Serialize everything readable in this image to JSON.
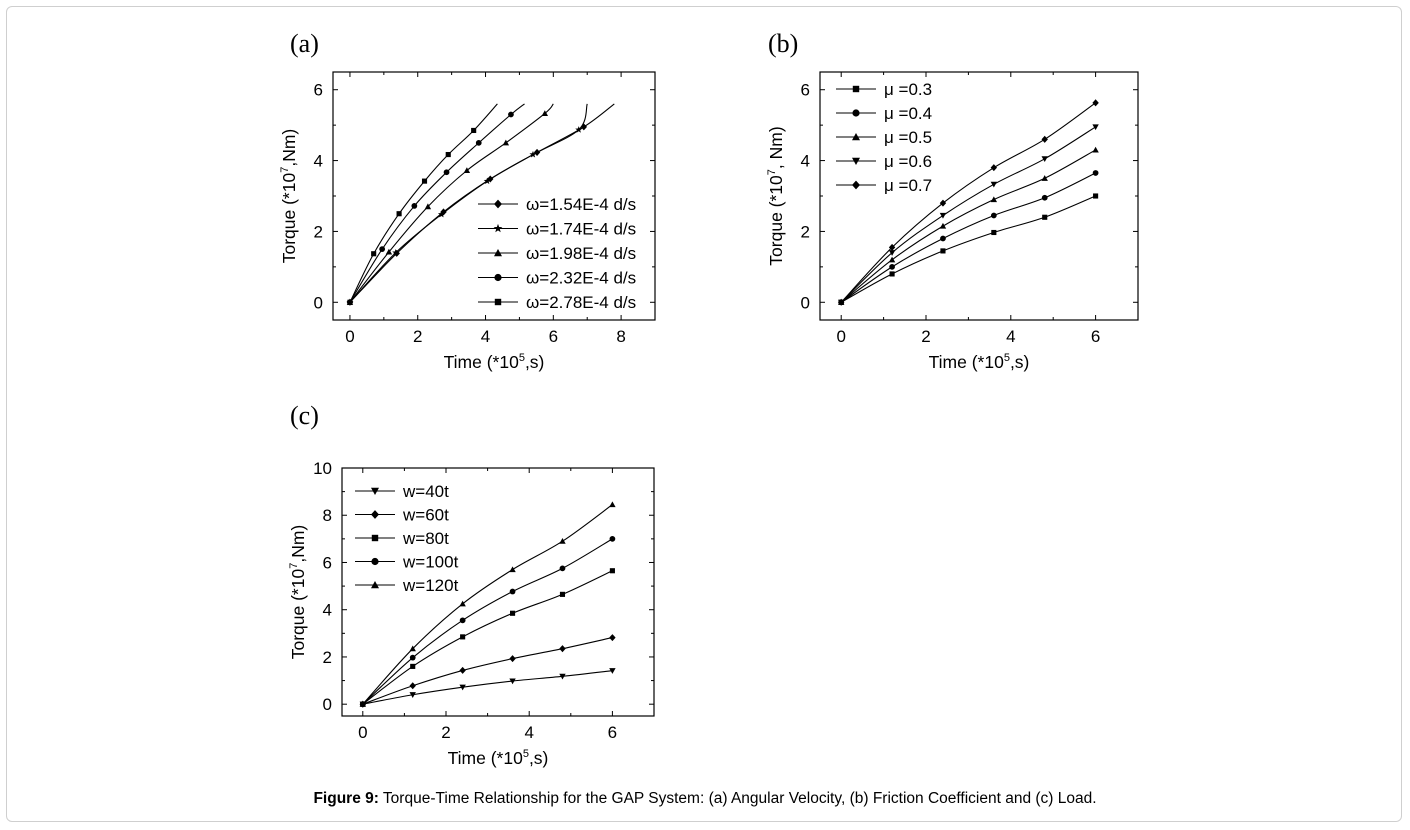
{
  "caption": {
    "label": "Figure 9:",
    "text": " Torque-Time Relationship for the GAP System: (a) Angular Velocity, (b) Friction Coefficient and (c) Load."
  },
  "chart_data": [
    {
      "panel": "(a)",
      "type": "line",
      "xlabel_pre": "Time (*10",
      "xlabel_exp": "5",
      "xlabel_post": ",s)",
      "ylabel_pre": "Torque (*10",
      "ylabel_exp": "7",
      "ylabel_post": ",Nm)",
      "xlim": [
        -0.5,
        9.0
      ],
      "ylim": [
        -0.5,
        6.5
      ],
      "xticks": [
        0,
        2,
        4,
        6,
        8
      ],
      "yticks": [
        0,
        2,
        4,
        6
      ],
      "legend_position": "right",
      "legend_order": [
        4,
        3,
        2,
        1,
        0
      ],
      "series": [
        {
          "name": "ω=2.78E-4 d/s",
          "marker": "square",
          "x": [
            0,
            0.7,
            1.45,
            2.2,
            2.9,
            3.65,
            4.35
          ],
          "y": [
            0,
            1.37,
            2.5,
            3.42,
            4.17,
            4.85,
            5.6
          ],
          "markers": [
            0,
            0.7,
            1.45,
            2.2,
            2.9,
            3.65
          ]
        },
        {
          "name": "ω=2.32E-4 d/s",
          "marker": "circle",
          "x": [
            0,
            0.95,
            1.9,
            2.85,
            3.8,
            4.75,
            5.15
          ],
          "y": [
            0,
            1.5,
            2.72,
            3.67,
            4.5,
            5.3,
            5.6
          ],
          "markers": [
            0,
            0.95,
            1.9,
            2.85,
            3.8,
            4.75
          ]
        },
        {
          "name": "ω=1.98E-4 d/s",
          "marker": "triangle-up",
          "x": [
            0,
            1.15,
            2.3,
            3.45,
            4.6,
            5.75,
            6.0
          ],
          "y": [
            0,
            1.42,
            2.7,
            3.72,
            4.5,
            5.33,
            5.6
          ],
          "markers": [
            0,
            1.15,
            2.3,
            3.45,
            4.6,
            5.75
          ]
        },
        {
          "name": "ω=1.74E-4 d/s",
          "marker": "star",
          "x": [
            0,
            1.35,
            2.7,
            4.05,
            5.4,
            6.75
          ],
          "y": [
            0,
            1.4,
            2.48,
            3.42,
            4.17,
            4.87
          ],
          "markers": [
            0,
            1.35,
            2.7,
            4.05,
            5.4,
            6.75
          ],
          "x_end": 7.0,
          "y_end": 5.6
        },
        {
          "name": "ω=1.54E-4 d/s",
          "marker": "diamond",
          "x": [
            0,
            1.38,
            2.76,
            4.14,
            5.52,
            6.9
          ],
          "y": [
            0,
            1.38,
            2.55,
            3.48,
            4.23,
            4.95
          ],
          "markers": [
            0,
            1.38,
            2.76,
            4.14,
            5.52,
            6.9
          ],
          "x_end": 7.8,
          "y_end": 5.6
        }
      ]
    },
    {
      "panel": "(b)",
      "type": "line",
      "xlabel_pre": "Time (*10",
      "xlabel_exp": "5",
      "xlabel_post": ",s)",
      "ylabel_pre": "Torque (*10",
      "ylabel_exp": "7",
      "ylabel_post": ", Nm)",
      "xlim": [
        -0.5,
        7.0
      ],
      "ylim": [
        -0.5,
        6.5
      ],
      "xticks": [
        0,
        2,
        4,
        6
      ],
      "yticks": [
        0,
        2,
        4,
        6
      ],
      "legend_position": "top-left",
      "legend_order": [
        0,
        1,
        2,
        3,
        4
      ],
      "series": [
        {
          "name": "μ =0.3",
          "marker": "square",
          "x": [
            0,
            1.2,
            2.4,
            3.6,
            4.8,
            6.0
          ],
          "y": [
            0,
            0.8,
            1.45,
            1.97,
            2.4,
            3.0
          ],
          "markers": [
            0,
            1.2,
            2.4,
            3.6,
            4.8,
            6.0
          ]
        },
        {
          "name": "μ =0.4",
          "marker": "circle",
          "x": [
            0,
            1.2,
            2.4,
            3.6,
            4.8,
            6.0
          ],
          "y": [
            0,
            1.0,
            1.8,
            2.45,
            2.95,
            3.65
          ],
          "markers": [
            0,
            1.2,
            2.4,
            3.6,
            4.8,
            6.0
          ]
        },
        {
          "name": "μ =0.5",
          "marker": "triangle-up",
          "x": [
            0,
            1.2,
            2.4,
            3.6,
            4.8,
            6.0
          ],
          "y": [
            0,
            1.2,
            2.15,
            2.9,
            3.5,
            4.3
          ],
          "markers": [
            0,
            1.2,
            2.4,
            3.6,
            4.8,
            6.0
          ]
        },
        {
          "name": "μ =0.6",
          "marker": "triangle-down",
          "x": [
            0,
            1.2,
            2.4,
            3.6,
            4.8,
            6.0
          ],
          "y": [
            0,
            1.4,
            2.45,
            3.33,
            4.05,
            4.95
          ],
          "markers": [
            0,
            1.2,
            2.4,
            3.6,
            4.8,
            6.0
          ]
        },
        {
          "name": "μ =0.7",
          "marker": "diamond",
          "x": [
            0,
            1.2,
            2.4,
            3.6,
            4.8,
            6.0
          ],
          "y": [
            0,
            1.55,
            2.8,
            3.8,
            4.6,
            5.63
          ],
          "markers": [
            0,
            1.2,
            2.4,
            3.6,
            4.8,
            6.0
          ]
        }
      ]
    },
    {
      "panel": "(c)",
      "type": "line",
      "xlabel_pre": "Time (*10",
      "xlabel_exp": "5",
      "xlabel_post": ",s)",
      "ylabel_pre": "Torque (*10",
      "ylabel_exp": "7",
      "ylabel_post": ",Nm)",
      "xlim": [
        -0.5,
        7.0
      ],
      "ylim": [
        -0.5,
        10.0
      ],
      "xticks": [
        0,
        2,
        4,
        6
      ],
      "yticks": [
        0,
        2,
        4,
        6,
        8,
        10
      ],
      "legend_position": "top-left",
      "legend_order": [
        0,
        1,
        2,
        3,
        4
      ],
      "series": [
        {
          "name": "w=40t",
          "marker": "triangle-down",
          "x": [
            0,
            1.2,
            2.4,
            3.6,
            4.8,
            6.0
          ],
          "y": [
            0,
            0.4,
            0.72,
            0.98,
            1.18,
            1.42
          ],
          "markers": [
            0,
            1.2,
            2.4,
            3.6,
            4.8,
            6.0
          ]
        },
        {
          "name": "w=60t",
          "marker": "diamond",
          "x": [
            0,
            1.2,
            2.4,
            3.6,
            4.8,
            6.0
          ],
          "y": [
            0,
            0.78,
            1.43,
            1.93,
            2.35,
            2.82
          ],
          "markers": [
            0,
            1.2,
            2.4,
            3.6,
            4.8,
            6.0
          ]
        },
        {
          "name": "w=80t",
          "marker": "square",
          "x": [
            0,
            1.2,
            2.4,
            3.6,
            4.8,
            6.0
          ],
          "y": [
            0,
            1.6,
            2.85,
            3.85,
            4.65,
            5.65
          ],
          "markers": [
            0,
            1.2,
            2.4,
            3.6,
            4.8,
            6.0
          ]
        },
        {
          "name": "w=100t",
          "marker": "circle",
          "x": [
            0,
            1.2,
            2.4,
            3.6,
            4.8,
            6.0
          ],
          "y": [
            0,
            1.97,
            3.55,
            4.77,
            5.75,
            7.0
          ],
          "markers": [
            0,
            1.2,
            2.4,
            3.6,
            4.8,
            6.0
          ]
        },
        {
          "name": "w=120t",
          "marker": "triangle-up",
          "x": [
            0,
            1.2,
            2.4,
            3.6,
            4.8,
            6.0
          ],
          "y": [
            0,
            2.35,
            4.25,
            5.7,
            6.9,
            8.45
          ],
          "markers": [
            0,
            1.2,
            2.4,
            3.6,
            4.8,
            6.0
          ]
        }
      ]
    }
  ]
}
